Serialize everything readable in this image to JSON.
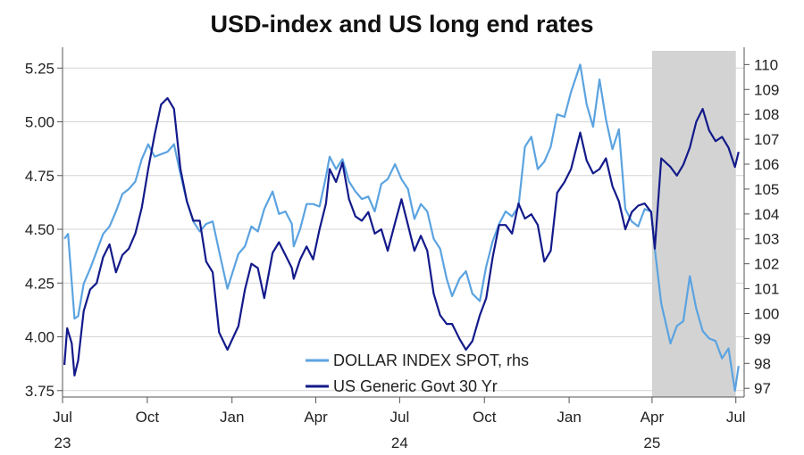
{
  "chart_data": {
    "type": "line",
    "title": "USD-index and US long end rates",
    "left_axis": {
      "ylim": [
        3.72,
        5.33
      ],
      "ticks": [
        3.75,
        4.0,
        4.25,
        4.5,
        4.75,
        5.0,
        5.25
      ],
      "tick_labels": [
        "3.75",
        "4.00",
        "4.25",
        "4.50",
        "4.75",
        "5.00",
        "5.25"
      ]
    },
    "right_axis": {
      "ylim": [
        96.65,
        110.55
      ],
      "ticks": [
        97,
        98,
        99,
        100,
        101,
        102,
        103,
        104,
        105,
        106,
        107,
        108,
        109,
        110
      ],
      "tick_labels": [
        "97",
        "98",
        "99",
        "100",
        "101",
        "102",
        "103",
        "104",
        "105",
        "106",
        "107",
        "108",
        "109",
        "110"
      ]
    },
    "x_axis": {
      "range": [
        "2023-07-01",
        "2025-07-10"
      ],
      "ticks": [
        {
          "date": "2023-07-01",
          "label": "Jul",
          "year": "23"
        },
        {
          "date": "2023-10-01",
          "label": "Oct"
        },
        {
          "date": "2024-01-01",
          "label": "Jan"
        },
        {
          "date": "2024-04-01",
          "label": "Apr"
        },
        {
          "date": "2024-07-01",
          "label": "Jul",
          "year": "24"
        },
        {
          "date": "2024-10-01",
          "label": "Oct"
        },
        {
          "date": "2025-01-01",
          "label": "Jan"
        },
        {
          "date": "2025-04-01",
          "label": "Apr",
          "year": "25"
        },
        {
          "date": "2025-07-01",
          "label": "Jul"
        }
      ]
    },
    "shaded_region": {
      "start": "2025-04-01",
      "end": "2025-07-01",
      "color": "#d3d3d3"
    },
    "grid": "horizontal",
    "legend_position": "bottom-center",
    "series": [
      {
        "name": "DOLLAR INDEX SPOT, rhs",
        "axis": "right",
        "color": "#5ba3e0",
        "points": [
          [
            "2023-07-03",
            103.0
          ],
          [
            "2023-07-07",
            103.2
          ],
          [
            "2023-07-14",
            99.8
          ],
          [
            "2023-07-18",
            99.9
          ],
          [
            "2023-07-24",
            101.2
          ],
          [
            "2023-07-31",
            101.8
          ],
          [
            "2023-08-07",
            102.5
          ],
          [
            "2023-08-14",
            103.2
          ],
          [
            "2023-08-21",
            103.5
          ],
          [
            "2023-08-28",
            104.1
          ],
          [
            "2023-09-04",
            104.8
          ],
          [
            "2023-09-11",
            105.0
          ],
          [
            "2023-09-18",
            105.3
          ],
          [
            "2023-09-25",
            106.2
          ],
          [
            "2023-10-02",
            106.8
          ],
          [
            "2023-10-09",
            106.3
          ],
          [
            "2023-10-16",
            106.4
          ],
          [
            "2023-10-23",
            106.5
          ],
          [
            "2023-10-30",
            106.8
          ],
          [
            "2023-11-06",
            105.6
          ],
          [
            "2023-11-13",
            104.5
          ],
          [
            "2023-11-20",
            103.7
          ],
          [
            "2023-11-27",
            103.3
          ],
          [
            "2023-12-04",
            103.6
          ],
          [
            "2023-12-11",
            103.7
          ],
          [
            "2023-12-18",
            102.5
          ],
          [
            "2023-12-27",
            101.0
          ],
          [
            "2024-01-08",
            102.4
          ],
          [
            "2024-01-15",
            102.7
          ],
          [
            "2024-01-22",
            103.5
          ],
          [
            "2024-01-29",
            103.3
          ],
          [
            "2024-02-05",
            104.2
          ],
          [
            "2024-02-14",
            104.9
          ],
          [
            "2024-02-21",
            104.0
          ],
          [
            "2024-02-28",
            104.1
          ],
          [
            "2024-03-06",
            103.6
          ],
          [
            "2024-03-08",
            102.7
          ],
          [
            "2024-03-15",
            103.4
          ],
          [
            "2024-03-22",
            104.4
          ],
          [
            "2024-03-29",
            104.4
          ],
          [
            "2024-04-05",
            104.3
          ],
          [
            "2024-04-12",
            105.5
          ],
          [
            "2024-04-16",
            106.3
          ],
          [
            "2024-04-23",
            105.8
          ],
          [
            "2024-04-30",
            106.2
          ],
          [
            "2024-05-07",
            105.3
          ],
          [
            "2024-05-14",
            104.9
          ],
          [
            "2024-05-21",
            104.6
          ],
          [
            "2024-05-28",
            104.7
          ],
          [
            "2024-06-04",
            104.1
          ],
          [
            "2024-06-11",
            105.2
          ],
          [
            "2024-06-18",
            105.4
          ],
          [
            "2024-06-26",
            106.0
          ],
          [
            "2024-07-03",
            105.4
          ],
          [
            "2024-07-10",
            105.0
          ],
          [
            "2024-07-17",
            103.8
          ],
          [
            "2024-07-24",
            104.4
          ],
          [
            "2024-07-31",
            104.1
          ],
          [
            "2024-08-07",
            103.0
          ],
          [
            "2024-08-14",
            102.6
          ],
          [
            "2024-08-21",
            101.4
          ],
          [
            "2024-08-27",
            100.7
          ],
          [
            "2024-09-04",
            101.4
          ],
          [
            "2024-09-11",
            101.7
          ],
          [
            "2024-09-18",
            100.8
          ],
          [
            "2024-09-26",
            100.5
          ],
          [
            "2024-10-03",
            101.9
          ],
          [
            "2024-10-10",
            102.9
          ],
          [
            "2024-10-17",
            103.6
          ],
          [
            "2024-10-24",
            104.1
          ],
          [
            "2024-10-31",
            103.9
          ],
          [
            "2024-11-07",
            104.3
          ],
          [
            "2024-11-14",
            106.7
          ],
          [
            "2024-11-21",
            107.1
          ],
          [
            "2024-11-28",
            105.8
          ],
          [
            "2024-12-05",
            106.1
          ],
          [
            "2024-12-12",
            106.7
          ],
          [
            "2024-12-19",
            108.0
          ],
          [
            "2024-12-27",
            107.9
          ],
          [
            "2025-01-03",
            108.9
          ],
          [
            "2025-01-13",
            110.0
          ],
          [
            "2025-01-20",
            108.4
          ],
          [
            "2025-01-27",
            107.5
          ],
          [
            "2025-02-03",
            109.4
          ],
          [
            "2025-02-10",
            107.8
          ],
          [
            "2025-02-17",
            106.6
          ],
          [
            "2025-02-24",
            107.4
          ],
          [
            "2025-03-03",
            104.2
          ],
          [
            "2025-03-10",
            103.7
          ],
          [
            "2025-03-17",
            103.5
          ],
          [
            "2025-03-24",
            104.2
          ],
          [
            "2025-03-31",
            104.1
          ],
          [
            "2025-04-04",
            102.6
          ],
          [
            "2025-04-11",
            100.4
          ],
          [
            "2025-04-21",
            98.8
          ],
          [
            "2025-04-28",
            99.5
          ],
          [
            "2025-05-05",
            99.7
          ],
          [
            "2025-05-12",
            101.5
          ],
          [
            "2025-05-19",
            100.2
          ],
          [
            "2025-05-26",
            99.3
          ],
          [
            "2025-06-02",
            99.0
          ],
          [
            "2025-06-09",
            98.9
          ],
          [
            "2025-06-16",
            98.2
          ],
          [
            "2025-06-23",
            98.6
          ],
          [
            "2025-06-30",
            96.9
          ],
          [
            "2025-07-04",
            97.9
          ]
        ]
      },
      {
        "name": "US Generic Govt 30 Yr",
        "axis": "left",
        "color": "#131a8a",
        "points": [
          [
            "2023-07-03",
            3.87
          ],
          [
            "2023-07-06",
            4.04
          ],
          [
            "2023-07-11",
            3.97
          ],
          [
            "2023-07-14",
            3.82
          ],
          [
            "2023-07-18",
            3.89
          ],
          [
            "2023-07-24",
            4.12
          ],
          [
            "2023-07-31",
            4.22
          ],
          [
            "2023-08-07",
            4.25
          ],
          [
            "2023-08-14",
            4.37
          ],
          [
            "2023-08-21",
            4.43
          ],
          [
            "2023-08-28",
            4.3
          ],
          [
            "2023-09-04",
            4.38
          ],
          [
            "2023-09-11",
            4.41
          ],
          [
            "2023-09-18",
            4.48
          ],
          [
            "2023-09-25",
            4.6
          ],
          [
            "2023-10-02",
            4.78
          ],
          [
            "2023-10-09",
            4.94
          ],
          [
            "2023-10-16",
            5.08
          ],
          [
            "2023-10-23",
            5.11
          ],
          [
            "2023-10-30",
            5.06
          ],
          [
            "2023-11-06",
            4.78
          ],
          [
            "2023-11-13",
            4.63
          ],
          [
            "2023-11-20",
            4.54
          ],
          [
            "2023-11-27",
            4.54
          ],
          [
            "2023-12-04",
            4.35
          ],
          [
            "2023-12-11",
            4.3
          ],
          [
            "2023-12-18",
            4.02
          ],
          [
            "2023-12-27",
            3.94
          ],
          [
            "2024-01-08",
            4.05
          ],
          [
            "2024-01-15",
            4.22
          ],
          [
            "2024-01-22",
            4.34
          ],
          [
            "2024-01-29",
            4.32
          ],
          [
            "2024-02-05",
            4.18
          ],
          [
            "2024-02-14",
            4.39
          ],
          [
            "2024-02-21",
            4.44
          ],
          [
            "2024-02-28",
            4.38
          ],
          [
            "2024-03-06",
            4.32
          ],
          [
            "2024-03-08",
            4.27
          ],
          [
            "2024-03-15",
            4.36
          ],
          [
            "2024-03-22",
            4.42
          ],
          [
            "2024-03-29",
            4.36
          ],
          [
            "2024-04-05",
            4.5
          ],
          [
            "2024-04-12",
            4.62
          ],
          [
            "2024-04-16",
            4.78
          ],
          [
            "2024-04-23",
            4.72
          ],
          [
            "2024-04-30",
            4.81
          ],
          [
            "2024-05-07",
            4.64
          ],
          [
            "2024-05-14",
            4.56
          ],
          [
            "2024-05-21",
            4.54
          ],
          [
            "2024-05-28",
            4.58
          ],
          [
            "2024-06-04",
            4.48
          ],
          [
            "2024-06-11",
            4.5
          ],
          [
            "2024-06-18",
            4.4
          ],
          [
            "2024-06-26",
            4.53
          ],
          [
            "2024-07-03",
            4.64
          ],
          [
            "2024-07-10",
            4.52
          ],
          [
            "2024-07-17",
            4.4
          ],
          [
            "2024-07-24",
            4.47
          ],
          [
            "2024-07-31",
            4.4
          ],
          [
            "2024-08-07",
            4.2
          ],
          [
            "2024-08-14",
            4.1
          ],
          [
            "2024-08-21",
            4.06
          ],
          [
            "2024-08-27",
            4.06
          ],
          [
            "2024-09-04",
            3.99
          ],
          [
            "2024-09-11",
            3.94
          ],
          [
            "2024-09-18",
            3.98
          ],
          [
            "2024-09-26",
            4.1
          ],
          [
            "2024-10-03",
            4.18
          ],
          [
            "2024-10-10",
            4.37
          ],
          [
            "2024-10-17",
            4.52
          ],
          [
            "2024-10-24",
            4.52
          ],
          [
            "2024-10-31",
            4.48
          ],
          [
            "2024-11-07",
            4.62
          ],
          [
            "2024-11-14",
            4.55
          ],
          [
            "2024-11-21",
            4.57
          ],
          [
            "2024-11-28",
            4.52
          ],
          [
            "2024-12-05",
            4.35
          ],
          [
            "2024-12-12",
            4.4
          ],
          [
            "2024-12-19",
            4.67
          ],
          [
            "2024-12-27",
            4.72
          ],
          [
            "2025-01-03",
            4.78
          ],
          [
            "2025-01-13",
            4.95
          ],
          [
            "2025-01-20",
            4.82
          ],
          [
            "2025-01-27",
            4.76
          ],
          [
            "2025-02-03",
            4.78
          ],
          [
            "2025-02-10",
            4.83
          ],
          [
            "2025-02-17",
            4.7
          ],
          [
            "2025-02-24",
            4.63
          ],
          [
            "2025-03-03",
            4.5
          ],
          [
            "2025-03-10",
            4.58
          ],
          [
            "2025-03-17",
            4.61
          ],
          [
            "2025-03-24",
            4.62
          ],
          [
            "2025-03-31",
            4.58
          ],
          [
            "2025-04-04",
            4.41
          ],
          [
            "2025-04-11",
            4.83
          ],
          [
            "2025-04-21",
            4.79
          ],
          [
            "2025-04-28",
            4.75
          ],
          [
            "2025-05-05",
            4.8
          ],
          [
            "2025-05-12",
            4.88
          ],
          [
            "2025-05-19",
            5.0
          ],
          [
            "2025-05-26",
            5.06
          ],
          [
            "2025-06-02",
            4.96
          ],
          [
            "2025-06-09",
            4.91
          ],
          [
            "2025-06-16",
            4.93
          ],
          [
            "2025-06-23",
            4.88
          ],
          [
            "2025-06-30",
            4.79
          ],
          [
            "2025-07-04",
            4.86
          ]
        ]
      }
    ]
  }
}
